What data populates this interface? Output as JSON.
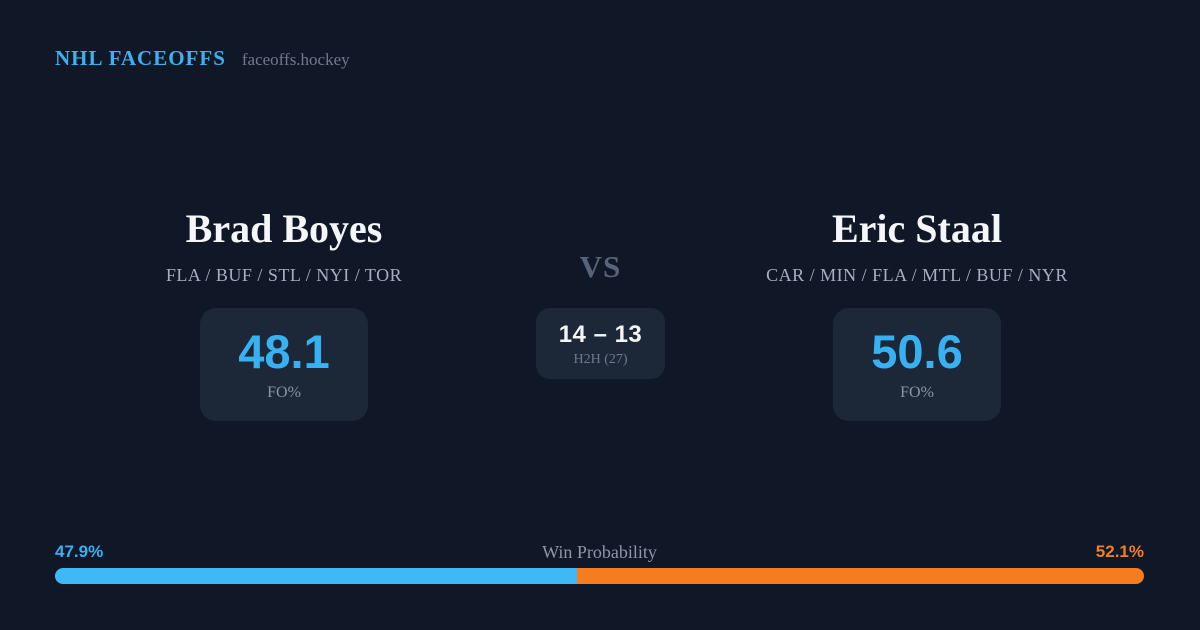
{
  "header": {
    "brand": "NHL FACEOFFS",
    "site": "faceoffs.hockey"
  },
  "matchup": {
    "vs_label": "VS",
    "h2h": {
      "score": "14 – 13",
      "label": "H2H (27)"
    },
    "player_left": {
      "name": "Brad Boyes",
      "teams": "FLA / BUF / STL / NYI / TOR",
      "stat_value": "48.1",
      "stat_label": "FO%"
    },
    "player_right": {
      "name": "Eric Staal",
      "teams": "CAR / MIN / FLA / MTL / BUF / NYR",
      "stat_value": "50.6",
      "stat_label": "FO%"
    }
  },
  "win_probability": {
    "label": "Win Probability",
    "left_pct_label": "47.9%",
    "right_pct_label": "52.1%",
    "left_value": 47.9,
    "right_value": 52.1,
    "left_color": "#3cb9f6",
    "right_color": "#f57d1e"
  },
  "colors": {
    "background": "#101828",
    "card_background": "#1c2737",
    "accent_blue": "#38b1f3",
    "accent_orange": "#f57d1e"
  }
}
